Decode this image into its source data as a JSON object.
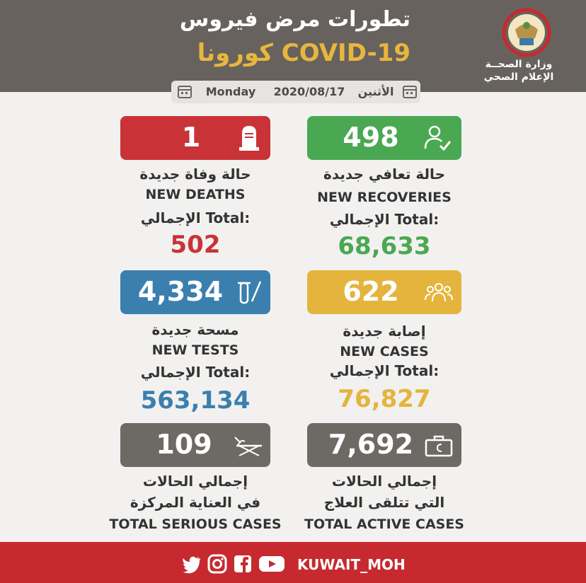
{
  "header": {
    "title_ar": "تطورات مرض فيروس",
    "title_covid": "كورونا COVID-19",
    "ministry_line1": "وزارة الصحــة",
    "ministry_line2": "الإعلام الصحي"
  },
  "date": {
    "day_ar": "الأثنين",
    "date": "2020/08/17",
    "day_en": "Monday"
  },
  "colors": {
    "red": "#c93337",
    "green": "#4aa852",
    "blue": "#3b7fae",
    "yellow": "#e4b43c",
    "gray": "#6d6a66"
  },
  "stats": {
    "deaths": {
      "value": "1",
      "label_ar": "حالة وفاة جديدة",
      "label_en": "NEW DEATHS",
      "total_label": "الإجمالي Total:",
      "total": "502",
      "icon": "tombstone-icon"
    },
    "recoveries": {
      "value": "498",
      "label_ar": "حالة تعافي جديدة",
      "label_en": "NEW RECOVERIES",
      "total_label": "الإجمالي Total:",
      "total": "68,633",
      "icon": "recovered-person-icon"
    },
    "tests": {
      "value": "4,334",
      "label_ar": "مسحة جديدة",
      "label_en": "NEW TESTS",
      "total_label": "الإجمالي Total:",
      "total": "563,134",
      "icon": "test-swab-icon"
    },
    "cases": {
      "value": "622",
      "label_ar": "إصابة جديدة",
      "label_en": "NEW CASES",
      "total_label": "الإجمالي Total:",
      "total": "76,827",
      "icon": "people-group-icon"
    },
    "serious": {
      "value": "109",
      "label_ar_1": "إجمالي الحالات",
      "label_ar_2": "في العناية المركزة",
      "label_en": "TOTAL SERIOUS CASES",
      "icon": "hospital-bed-icon"
    },
    "active": {
      "value": "7,692",
      "label_ar_1": "إجمالي الحالات",
      "label_ar_2": "التي تتلقى العلاج",
      "label_en": "TOTAL ACTIVE CASES",
      "icon": "medical-bag-icon"
    }
  },
  "footer": {
    "handle": "KUWAIT_MOH",
    "icons": [
      "twitter-icon",
      "instagram-icon",
      "facebook-icon",
      "youtube-icon"
    ]
  }
}
